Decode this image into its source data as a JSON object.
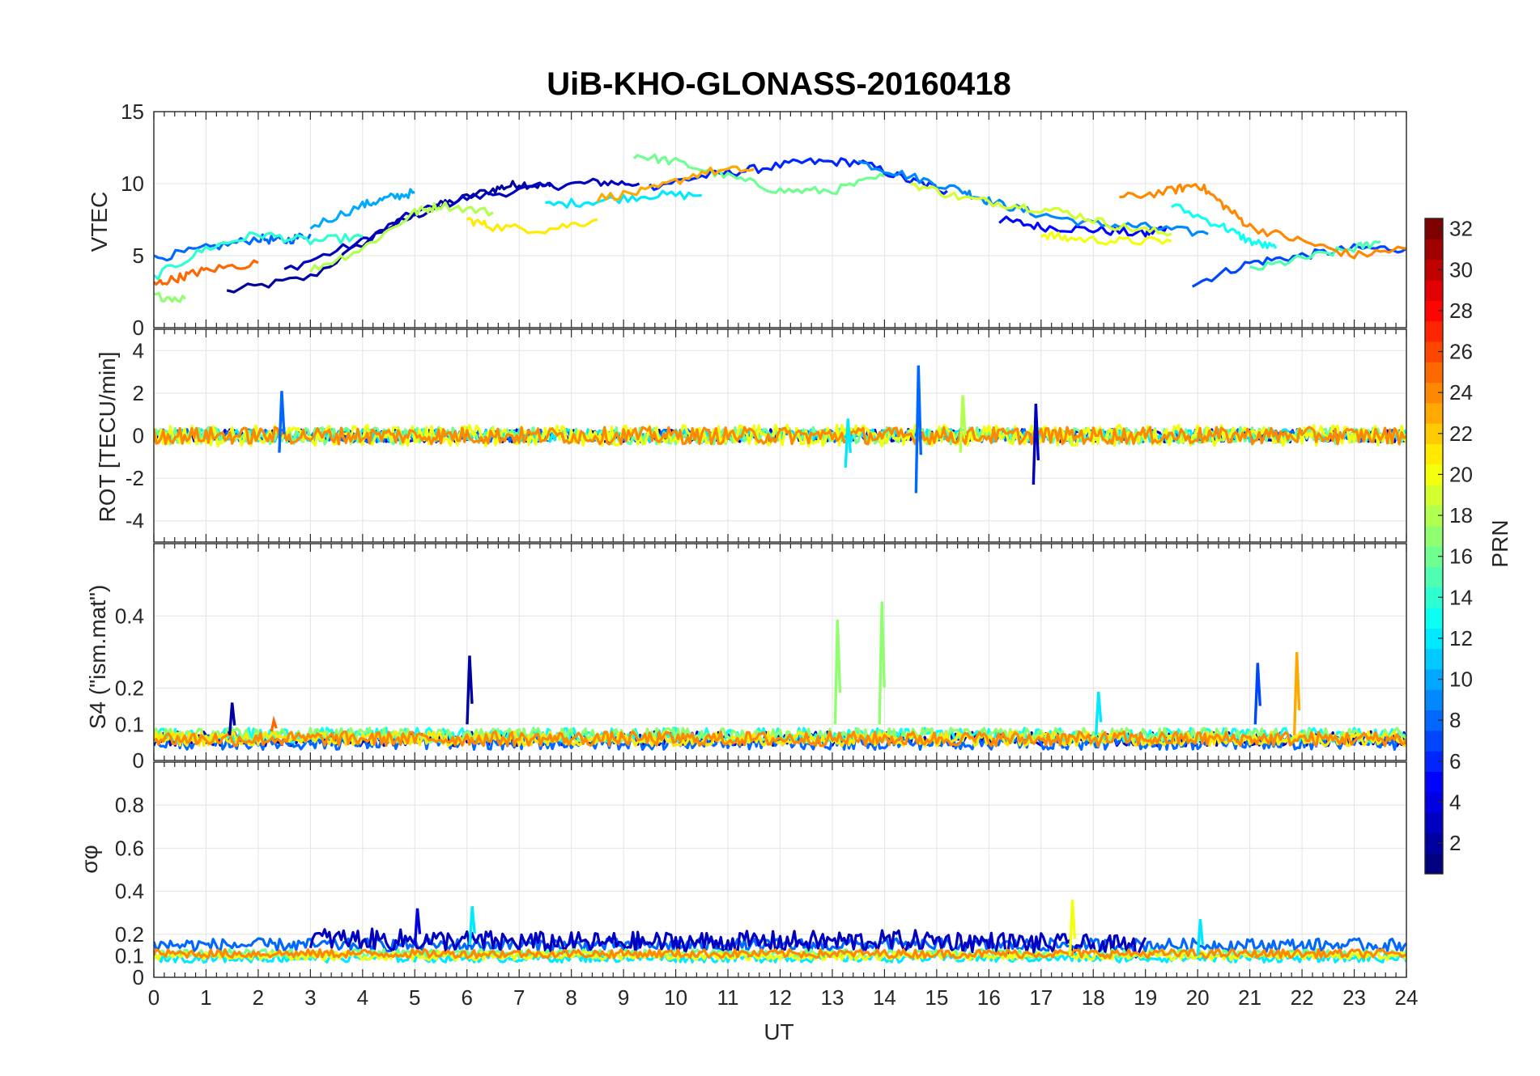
{
  "chart_data": {
    "title": "UiB-KHO-GLONASS-20160418",
    "type": "line",
    "xlabel": "UT",
    "xlim": [
      0,
      24
    ],
    "xticks": [
      "0",
      "1",
      "2",
      "3",
      "4",
      "5",
      "6",
      "7",
      "8",
      "9",
      "10",
      "11",
      "12",
      "13",
      "14",
      "15",
      "16",
      "17",
      "18",
      "19",
      "20",
      "21",
      "22",
      "23",
      "24"
    ],
    "grid": "on",
    "colormap": "jet",
    "colorbar": {
      "label": "PRN",
      "placement": "right",
      "range": [
        1,
        32
      ],
      "ticks": [
        "2",
        "4",
        "6",
        "8",
        "10",
        "12",
        "14",
        "16",
        "18",
        "20",
        "22",
        "24",
        "26",
        "28",
        "30",
        "32"
      ]
    },
    "panels": [
      {
        "ylabel": "VTEC",
        "ylim": [
          0,
          15
        ],
        "yticks": [
          "0",
          "5",
          "10",
          "15"
        ],
        "series": [
          {
            "prn": 2,
            "x": [
              1.4,
              3,
              4.5,
              5.5,
              6.5,
              7.0,
              7.6
            ],
            "y": [
              2.5,
              3.5,
              7.0,
              8.5,
              9.6,
              10.0,
              9.8
            ]
          },
          {
            "prn": 3,
            "x": [
              2.5,
              4,
              5,
              6,
              7.5,
              8.5,
              9.3
            ],
            "y": [
              4.0,
              6.0,
              8.0,
              9.0,
              9.8,
              10.1,
              10.0
            ]
          },
          {
            "prn": 5,
            "x": [
              16.2,
              17,
              18,
              19,
              19.4
            ],
            "y": [
              7.5,
              7.0,
              6.8,
              6.5,
              7.0
            ]
          },
          {
            "prn": 6,
            "x": [
              9.5,
              10.5,
              11.5,
              12.5,
              13.5,
              14.5,
              15.2
            ],
            "y": [
              9.8,
              10.5,
              11.0,
              11.5,
              11.5,
              10.2,
              9.5
            ]
          },
          {
            "prn": 7,
            "x": [
              19.9,
              21,
              22,
              23,
              24
            ],
            "y": [
              3.0,
              4.5,
              5.0,
              5.5,
              5.5
            ]
          },
          {
            "prn": 8,
            "x": [
              0,
              1,
              2,
              2.5,
              3
            ],
            "y": [
              4.8,
              5.5,
              6.2,
              6.0,
              6.5
            ]
          },
          {
            "prn": 9,
            "x": [
              13.5,
              14.5,
              15.5,
              16,
              16.8,
              18,
              19,
              20.2
            ],
            "y": [
              11.5,
              10.5,
              9.5,
              8.8,
              8.0,
              7.2,
              7.0,
              6.5
            ]
          },
          {
            "prn": 10,
            "x": [
              3,
              4,
              4.5,
              5
            ],
            "y": [
              7.0,
              8.5,
              9.0,
              9.4
            ]
          },
          {
            "prn": 12,
            "x": [
              7.5,
              8.5,
              9.5,
              10.5
            ],
            "y": [
              8.5,
              8.8,
              9.2,
              9.2
            ]
          },
          {
            "prn": 13,
            "x": [
              19.5,
              20.5,
              21,
              21.5
            ],
            "y": [
              8.5,
              7.0,
              6.0,
              5.5
            ]
          },
          {
            "prn": 14,
            "x": [
              0,
              1,
              2,
              3,
              4
            ],
            "y": [
              3.5,
              5.5,
              6.5,
              6.0,
              6.3
            ]
          },
          {
            "prn": 15,
            "x": [
              21,
              22,
              23,
              23.5
            ],
            "y": [
              4.0,
              4.8,
              5.5,
              6.0
            ]
          },
          {
            "prn": 16,
            "x": [
              9.2,
              10,
              11,
              12,
              13,
              14
            ],
            "y": [
              12.0,
              11.5,
              10.5,
              9.5,
              9.5,
              10.5
            ]
          },
          {
            "prn": 17,
            "x": [
              0,
              0.6
            ],
            "y": [
              2.2,
              2.0
            ]
          },
          {
            "prn": 18,
            "x": [
              3,
              4,
              5,
              5.5,
              6.5
            ],
            "y": [
              4.0,
              5.5,
              8.0,
              8.5,
              8.0
            ]
          },
          {
            "prn": 19,
            "x": [
              14.5,
              15.5,
              16.5,
              17.5,
              18.5,
              19.5
            ],
            "y": [
              10.0,
              9.0,
              8.5,
              8.0,
              7.0,
              6.5
            ]
          },
          {
            "prn": 20,
            "x": [
              17,
              17.5,
              18.5,
              19.5
            ],
            "y": [
              6.5,
              6.2,
              6.0,
              6.0
            ]
          },
          {
            "prn": 21,
            "x": [
              6.0,
              6.5,
              7.5,
              8.5
            ],
            "y": [
              7.5,
              7.0,
              6.8,
              7.5
            ]
          },
          {
            "prn": 23,
            "x": [
              8.5,
              9.5,
              10.5,
              11.5
            ],
            "y": [
              9.0,
              9.5,
              10.8,
              11.0
            ]
          },
          {
            "prn": 24,
            "x": [
              18.5,
              19.5,
              20,
              20.5,
              21,
              22,
              23,
              24
            ],
            "y": [
              9.0,
              9.5,
              10.0,
              8.5,
              7.0,
              6.0,
              5.0,
              5.5
            ]
          },
          {
            "prn": 25,
            "x": [
              0,
              0.5,
              1,
              2
            ],
            "y": [
              3.0,
              3.5,
              4.0,
              4.5
            ]
          }
        ]
      },
      {
        "ylabel": "ROT [TECU/min]",
        "ylim": [
          -5,
          5
        ],
        "yticks": [
          "-4",
          "-2",
          "0",
          "2",
          "4"
        ],
        "series": [
          {
            "prn": 3,
            "x": [
              0,
              24
            ],
            "y": [
              0,
              0
            ],
            "noise": 0.3
          },
          {
            "prn": 8,
            "x": [
              0,
              24
            ],
            "y": [
              0,
              0
            ],
            "noise": 0.3
          },
          {
            "prn": 12,
            "x": [
              0,
              24
            ],
            "y": [
              0,
              0
            ],
            "noise": 0.3
          },
          {
            "prn": 16,
            "x": [
              0,
              24
            ],
            "y": [
              0,
              0
            ],
            "noise": 0.4
          },
          {
            "prn": 20,
            "x": [
              0,
              24
            ],
            "y": [
              0,
              0
            ],
            "noise": 0.5
          },
          {
            "prn": 24,
            "x": [
              0,
              24
            ],
            "y": [
              0,
              0
            ],
            "noise": 0.4
          }
        ],
        "spikes": [
          {
            "prn": 8,
            "x": 2.45,
            "y": [
              -0.8,
              2.1
            ]
          },
          {
            "prn": 8,
            "x": 14.65,
            "y": [
              -2.7,
              3.3
            ]
          },
          {
            "prn": 3,
            "x": 16.9,
            "y": [
              -2.3,
              1.5
            ]
          },
          {
            "prn": 12,
            "x": 13.3,
            "y": [
              -1.5,
              0.8
            ]
          },
          {
            "prn": 18,
            "x": 15.5,
            "y": [
              -0.8,
              1.9
            ]
          }
        ]
      },
      {
        "ylabel": "S4 (\"ism.mat\")",
        "ylim": [
          0,
          0.6
        ],
        "yticks": [
          "0",
          "0.1",
          "0.2",
          "0.4"
        ],
        "series": [
          {
            "prn": 3,
            "x": [
              0,
              24
            ],
            "y": [
              0.06,
              0.06
            ],
            "noise": 0.02
          },
          {
            "prn": 8,
            "x": [
              0,
              24
            ],
            "y": [
              0.05,
              0.05
            ],
            "noise": 0.02
          },
          {
            "prn": 13,
            "x": [
              0,
              24
            ],
            "y": [
              0.07,
              0.07
            ],
            "noise": 0.02
          },
          {
            "prn": 17,
            "x": [
              0,
              24
            ],
            "y": [
              0.07,
              0.07
            ],
            "noise": 0.02
          },
          {
            "prn": 21,
            "x": [
              0,
              24
            ],
            "y": [
              0.06,
              0.06
            ],
            "noise": 0.02
          },
          {
            "prn": 24,
            "x": [
              0,
              24
            ],
            "y": [
              0.06,
              0.06
            ],
            "noise": 0.02
          }
        ],
        "spikes": [
          {
            "prn": 2,
            "x": 1.5,
            "y": [
              0.07,
              0.16
            ]
          },
          {
            "prn": 2,
            "x": 6.05,
            "y": [
              0.1,
              0.29
            ]
          },
          {
            "prn": 17,
            "x": 13.1,
            "y": [
              0.1,
              0.39
            ]
          },
          {
            "prn": 17,
            "x": 13.95,
            "y": [
              0.1,
              0.44
            ]
          },
          {
            "prn": 12,
            "x": 18.1,
            "y": [
              0.07,
              0.19
            ]
          },
          {
            "prn": 7,
            "x": 21.15,
            "y": [
              0.1,
              0.27
            ]
          },
          {
            "prn": 23,
            "x": 21.9,
            "y": [
              0.07,
              0.3
            ]
          },
          {
            "prn": 25,
            "x": 2.3,
            "y": [
              0.08,
              0.11
            ]
          }
        ]
      },
      {
        "ylabel": "σφ",
        "ylim": [
          0,
          1
        ],
        "yticks": [
          "0",
          "0.1",
          "0.2",
          "0.4",
          "0.6",
          "0.8"
        ],
        "series": [
          {
            "prn": 8,
            "x": [
              0,
              24
            ],
            "y": [
              0.15,
              0.15
            ],
            "noise": 0.03
          },
          {
            "prn": 3,
            "x": [
              3,
              8,
              15,
              19
            ],
            "y": [
              0.18,
              0.16,
              0.17,
              0.14
            ],
            "noise": 0.05
          },
          {
            "prn": 12,
            "x": [
              0,
              24
            ],
            "y": [
              0.09,
              0.09
            ],
            "noise": 0.02
          },
          {
            "prn": 16,
            "x": [
              0,
              24
            ],
            "y": [
              0.11,
              0.11
            ],
            "noise": 0.02
          },
          {
            "prn": 20,
            "x": [
              0,
              24
            ],
            "y": [
              0.1,
              0.1
            ],
            "noise": 0.02
          },
          {
            "prn": 24,
            "x": [
              0,
              24
            ],
            "y": [
              0.11,
              0.11
            ],
            "noise": 0.02
          }
        ],
        "spikes": [
          {
            "prn": 4,
            "x": 5.05,
            "y": [
              0.15,
              0.32
            ]
          },
          {
            "prn": 12,
            "x": 6.1,
            "y": [
              0.15,
              0.33
            ]
          },
          {
            "prn": 20,
            "x": 17.6,
            "y": [
              0.1,
              0.36
            ]
          },
          {
            "prn": 12,
            "x": 20.05,
            "y": [
              0.1,
              0.27
            ]
          }
        ]
      }
    ]
  }
}
